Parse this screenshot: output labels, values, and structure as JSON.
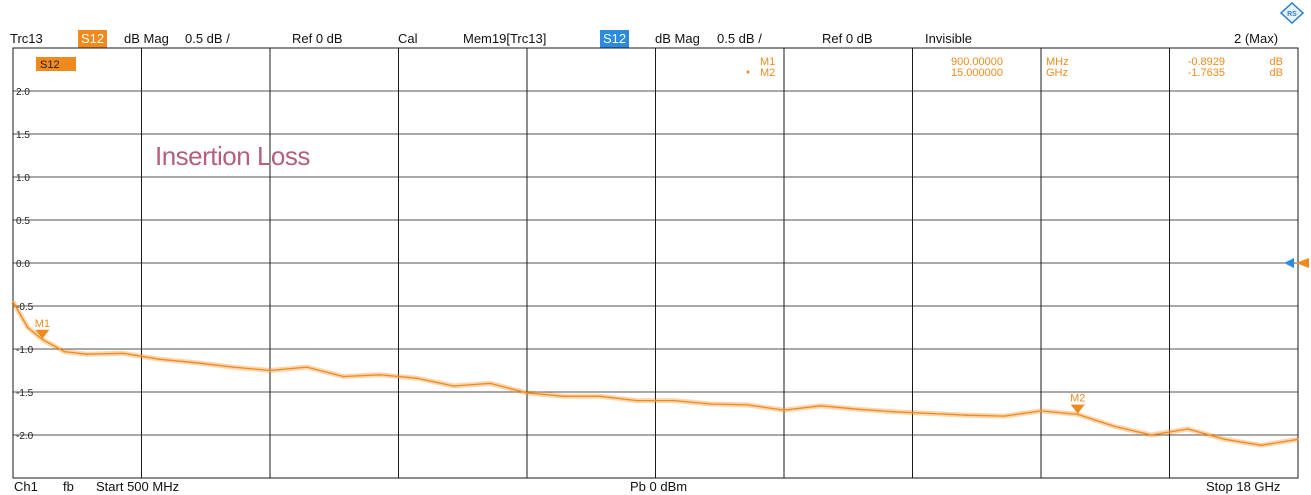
{
  "header": {
    "trace": "Trc13",
    "trace_badge": "S12",
    "trace_format": "dB Mag",
    "trace_scale": "0.5 dB /",
    "trace_ref": "Ref 0 dB",
    "trace_cal": "Cal",
    "mem": "Mem19[Trc13]",
    "mem_badge": "S12",
    "mem_format": "dB Mag",
    "mem_scale": "0.5 dB /",
    "mem_ref": "Ref 0 dB",
    "mem_state": "Invisible",
    "window": "2 (Max)"
  },
  "footer": {
    "channel": "Ch1",
    "sweep": "fb",
    "start": "Start 500 MHz",
    "power": "Pb   0 dBm",
    "stop": "Stop 18 GHz"
  },
  "plot": {
    "trace_label": "S12",
    "annotation": "Insertion Loss",
    "colors": {
      "trace": "#f08a1e",
      "memory": "#2a8be0",
      "grid": "#1a1a1a",
      "annotation": "#b5607a"
    }
  },
  "markers": [
    {
      "name": "M1",
      "stimulus": "900.00000",
      "unit": "MHz",
      "value": "-0.8929",
      "value_unit": "dB",
      "x_ghz": 0.9,
      "y_db": -0.8929
    },
    {
      "name": "M2",
      "stimulus": "15.000000",
      "unit": "GHz",
      "value": "-1.7635",
      "value_unit": "dB",
      "x_ghz": 15.0,
      "y_db": -1.7635
    }
  ],
  "chart_data": {
    "type": "line",
    "title": "",
    "xlabel": "",
    "ylabel": "",
    "xlim": [
      0.5,
      18
    ],
    "ylim": [
      -2.5,
      2.5
    ],
    "x_unit": "GHz",
    "y_unit": "dB",
    "ytick_labels": [
      "2.0",
      "1.5",
      "1.0",
      "0.5",
      "0.0",
      "-0.5",
      "-1.0",
      "-1.5",
      "-2.0"
    ],
    "ytick_values": [
      2.0,
      1.5,
      1.0,
      0.5,
      0.0,
      -0.5,
      -1.0,
      -1.5,
      -2.0
    ],
    "grid": true,
    "series": [
      {
        "name": "S12",
        "x": [
          0.5,
          0.7,
          0.9,
          1.2,
          1.5,
          2.0,
          2.5,
          3.0,
          3.5,
          4.0,
          4.5,
          5.0,
          5.5,
          6.0,
          6.5,
          7.0,
          7.5,
          8.0,
          8.5,
          9.0,
          9.5,
          10.0,
          10.5,
          11.0,
          11.5,
          12.0,
          12.5,
          13.0,
          13.5,
          14.0,
          14.5,
          15.0,
          15.5,
          16.0,
          16.5,
          17.0,
          17.5,
          18.0
        ],
        "y": [
          -0.45,
          -0.75,
          -0.89,
          -1.03,
          -1.06,
          -1.05,
          -1.12,
          -1.16,
          -1.21,
          -1.25,
          -1.21,
          -1.32,
          -1.3,
          -1.34,
          -1.43,
          -1.4,
          -1.51,
          -1.55,
          -1.55,
          -1.6,
          -1.6,
          -1.64,
          -1.65,
          -1.71,
          -1.66,
          -1.7,
          -1.73,
          -1.75,
          -1.77,
          -1.78,
          -1.72,
          -1.76,
          -1.9,
          -2.0,
          -1.93,
          -2.05,
          -2.12,
          -2.05
        ]
      }
    ]
  }
}
